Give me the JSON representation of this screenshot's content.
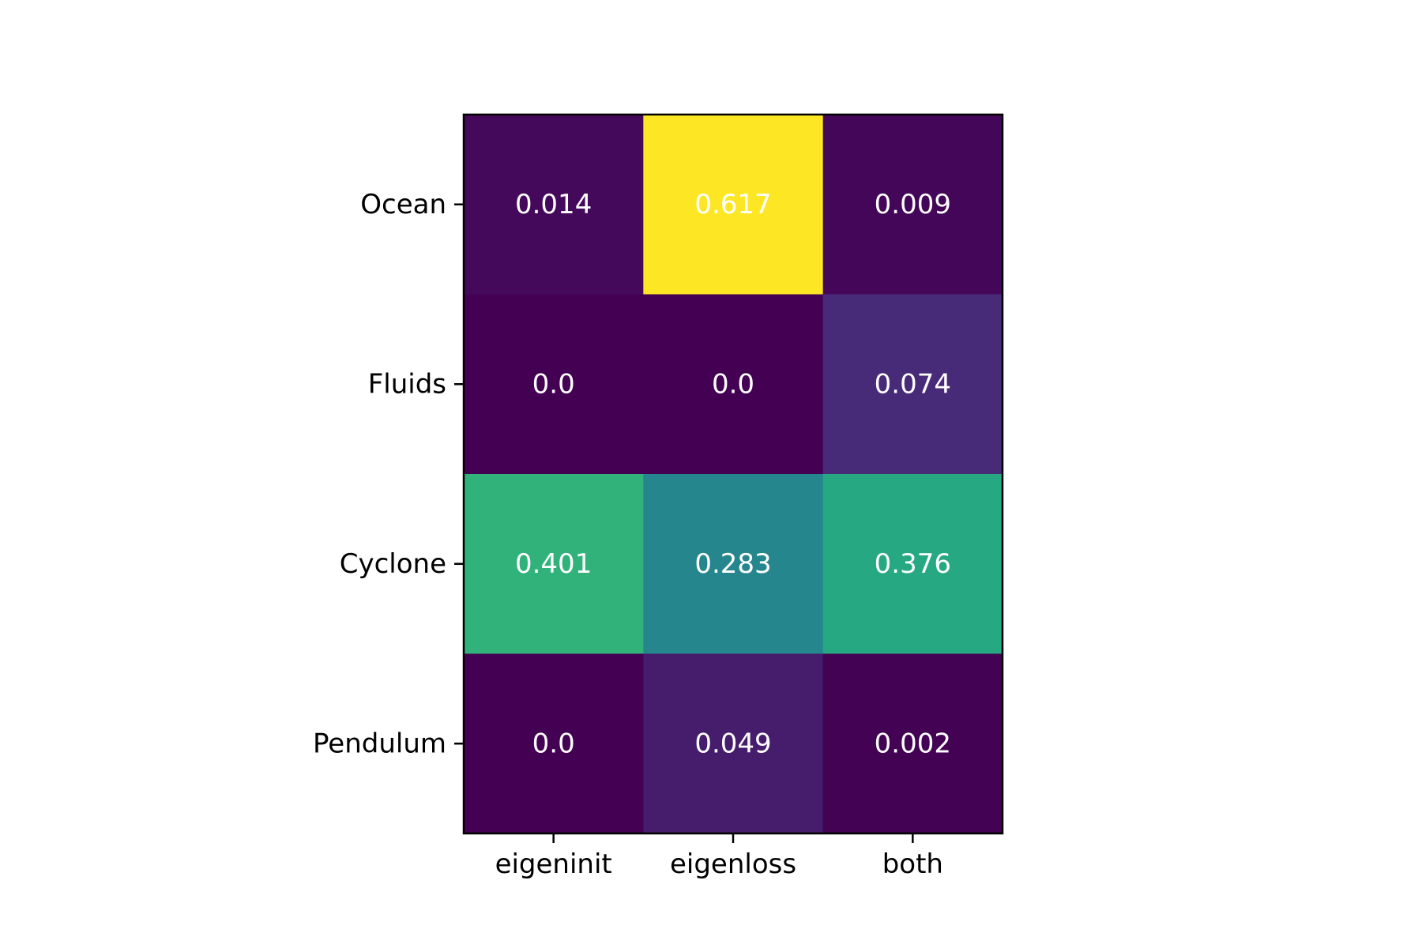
{
  "chart_data": {
    "type": "heatmap",
    "title": "",
    "xlabel": "",
    "ylabel": "",
    "x_categories": [
      "eigeninit",
      "eigenloss",
      "both"
    ],
    "y_categories": [
      "Ocean",
      "Fluids",
      "Cyclone",
      "Pendulum"
    ],
    "values": [
      [
        0.014,
        0.617,
        0.009
      ],
      [
        0.0,
        0.0,
        0.074
      ],
      [
        0.401,
        0.283,
        0.376
      ],
      [
        0.0,
        0.049,
        0.002
      ]
    ],
    "value_labels": [
      [
        "0.014",
        "0.617",
        "0.009"
      ],
      [
        "0.0",
        "0.0",
        "0.074"
      ],
      [
        "0.401",
        "0.283",
        "0.376"
      ],
      [
        "0.0",
        "0.049",
        "0.002"
      ]
    ],
    "colormap": "viridis",
    "color_range": [
      0.0,
      0.617
    ],
    "colorbar": false,
    "grid": false,
    "cell_text_color": "#ffffff"
  }
}
